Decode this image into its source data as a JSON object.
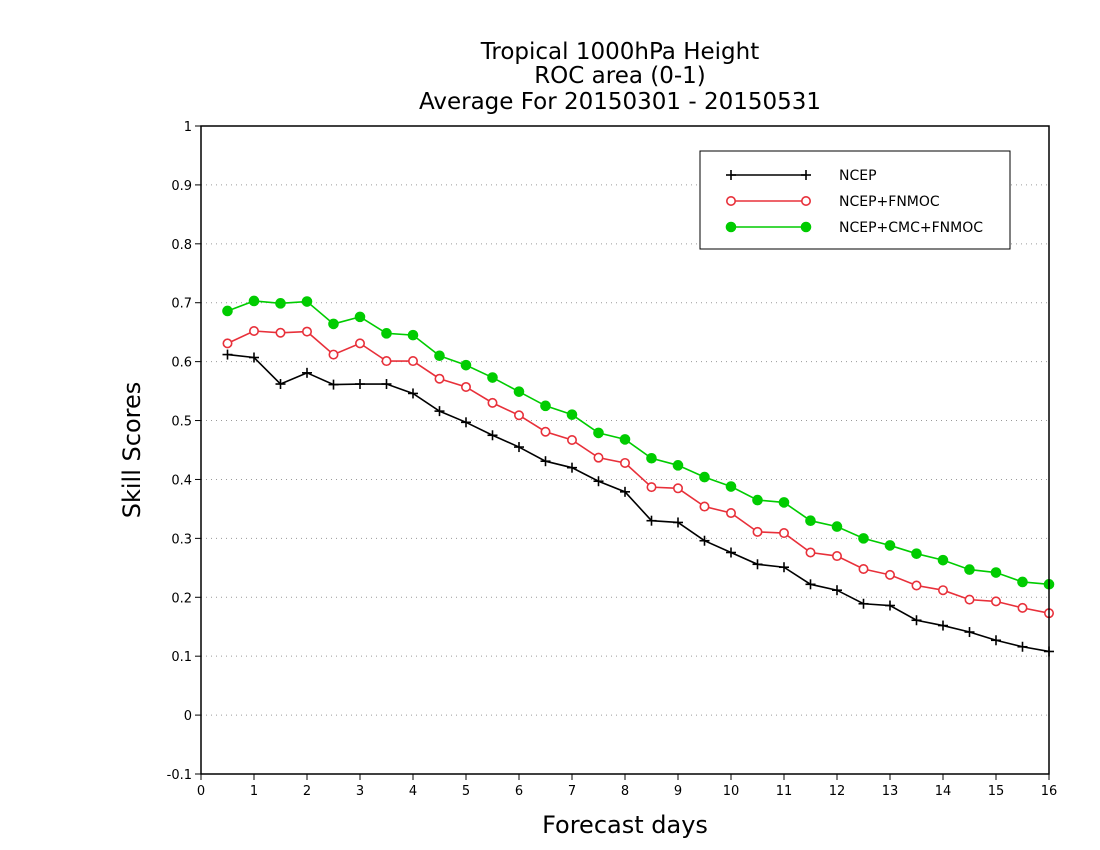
{
  "chart_data": {
    "type": "line",
    "title": [
      "Tropical 1000hPa Height",
      "ROC area (0-1)",
      "Average For 20150301 - 20150531"
    ],
    "xlabel": "Forecast days",
    "ylabel": "Skill Scores",
    "xlim": [
      0,
      16
    ],
    "ylim": [
      -0.1,
      1
    ],
    "xticks": [
      "0",
      "1",
      "2",
      "3",
      "4",
      "5",
      "6",
      "7",
      "8",
      "9",
      "10",
      "11",
      "12",
      "13",
      "14",
      "15",
      "16"
    ],
    "yticks": [
      "-0.1",
      "0",
      "0.1",
      "0.2",
      "0.3",
      "0.4",
      "0.5",
      "0.6",
      "0.7",
      "0.8",
      "0.9",
      "1"
    ],
    "grid": true,
    "legend_position": "top-right",
    "x": [
      0.5,
      1,
      1.5,
      2,
      2.5,
      3,
      3.5,
      4,
      4.5,
      5,
      5.5,
      6,
      6.5,
      7,
      7.5,
      8,
      8.5,
      9,
      9.5,
      10,
      10.5,
      11,
      11.5,
      12,
      12.5,
      13,
      13.5,
      14,
      14.5,
      15,
      15.5,
      16
    ],
    "series": [
      {
        "name": "NCEP",
        "color": "#000000",
        "marker": "plus",
        "values": [
          0.612,
          0.607,
          0.562,
          0.581,
          0.561,
          0.562,
          0.562,
          0.546,
          0.516,
          0.497,
          0.475,
          0.455,
          0.431,
          0.42,
          0.397,
          0.379,
          0.33,
          0.327,
          0.296,
          0.276,
          0.256,
          0.251,
          0.222,
          0.212,
          0.189,
          0.186,
          0.161,
          0.152,
          0.141,
          0.127,
          0.116,
          0.108
        ]
      },
      {
        "name": "NCEP+FNMOC",
        "color": "#e8303a",
        "marker": "open-circle",
        "values": [
          0.631,
          0.652,
          0.649,
          0.651,
          0.612,
          0.631,
          0.601,
          0.601,
          0.571,
          0.557,
          0.53,
          0.509,
          0.481,
          0.467,
          0.437,
          0.428,
          0.387,
          0.385,
          0.354,
          0.343,
          0.311,
          0.309,
          0.276,
          0.27,
          0.248,
          0.238,
          0.22,
          0.212,
          0.196,
          0.193,
          0.182,
          0.173
        ]
      },
      {
        "name": "NCEP+CMC+FNMOC",
        "color": "#00cc00",
        "marker": "filled-circle",
        "values": [
          0.686,
          0.703,
          0.699,
          0.702,
          0.664,
          0.676,
          0.648,
          0.645,
          0.61,
          0.594,
          0.573,
          0.549,
          0.525,
          0.51,
          0.479,
          0.468,
          0.436,
          0.424,
          0.404,
          0.388,
          0.365,
          0.361,
          0.33,
          0.32,
          0.3,
          0.288,
          0.274,
          0.263,
          0.247,
          0.242,
          0.226,
          0.222
        ]
      }
    ]
  }
}
